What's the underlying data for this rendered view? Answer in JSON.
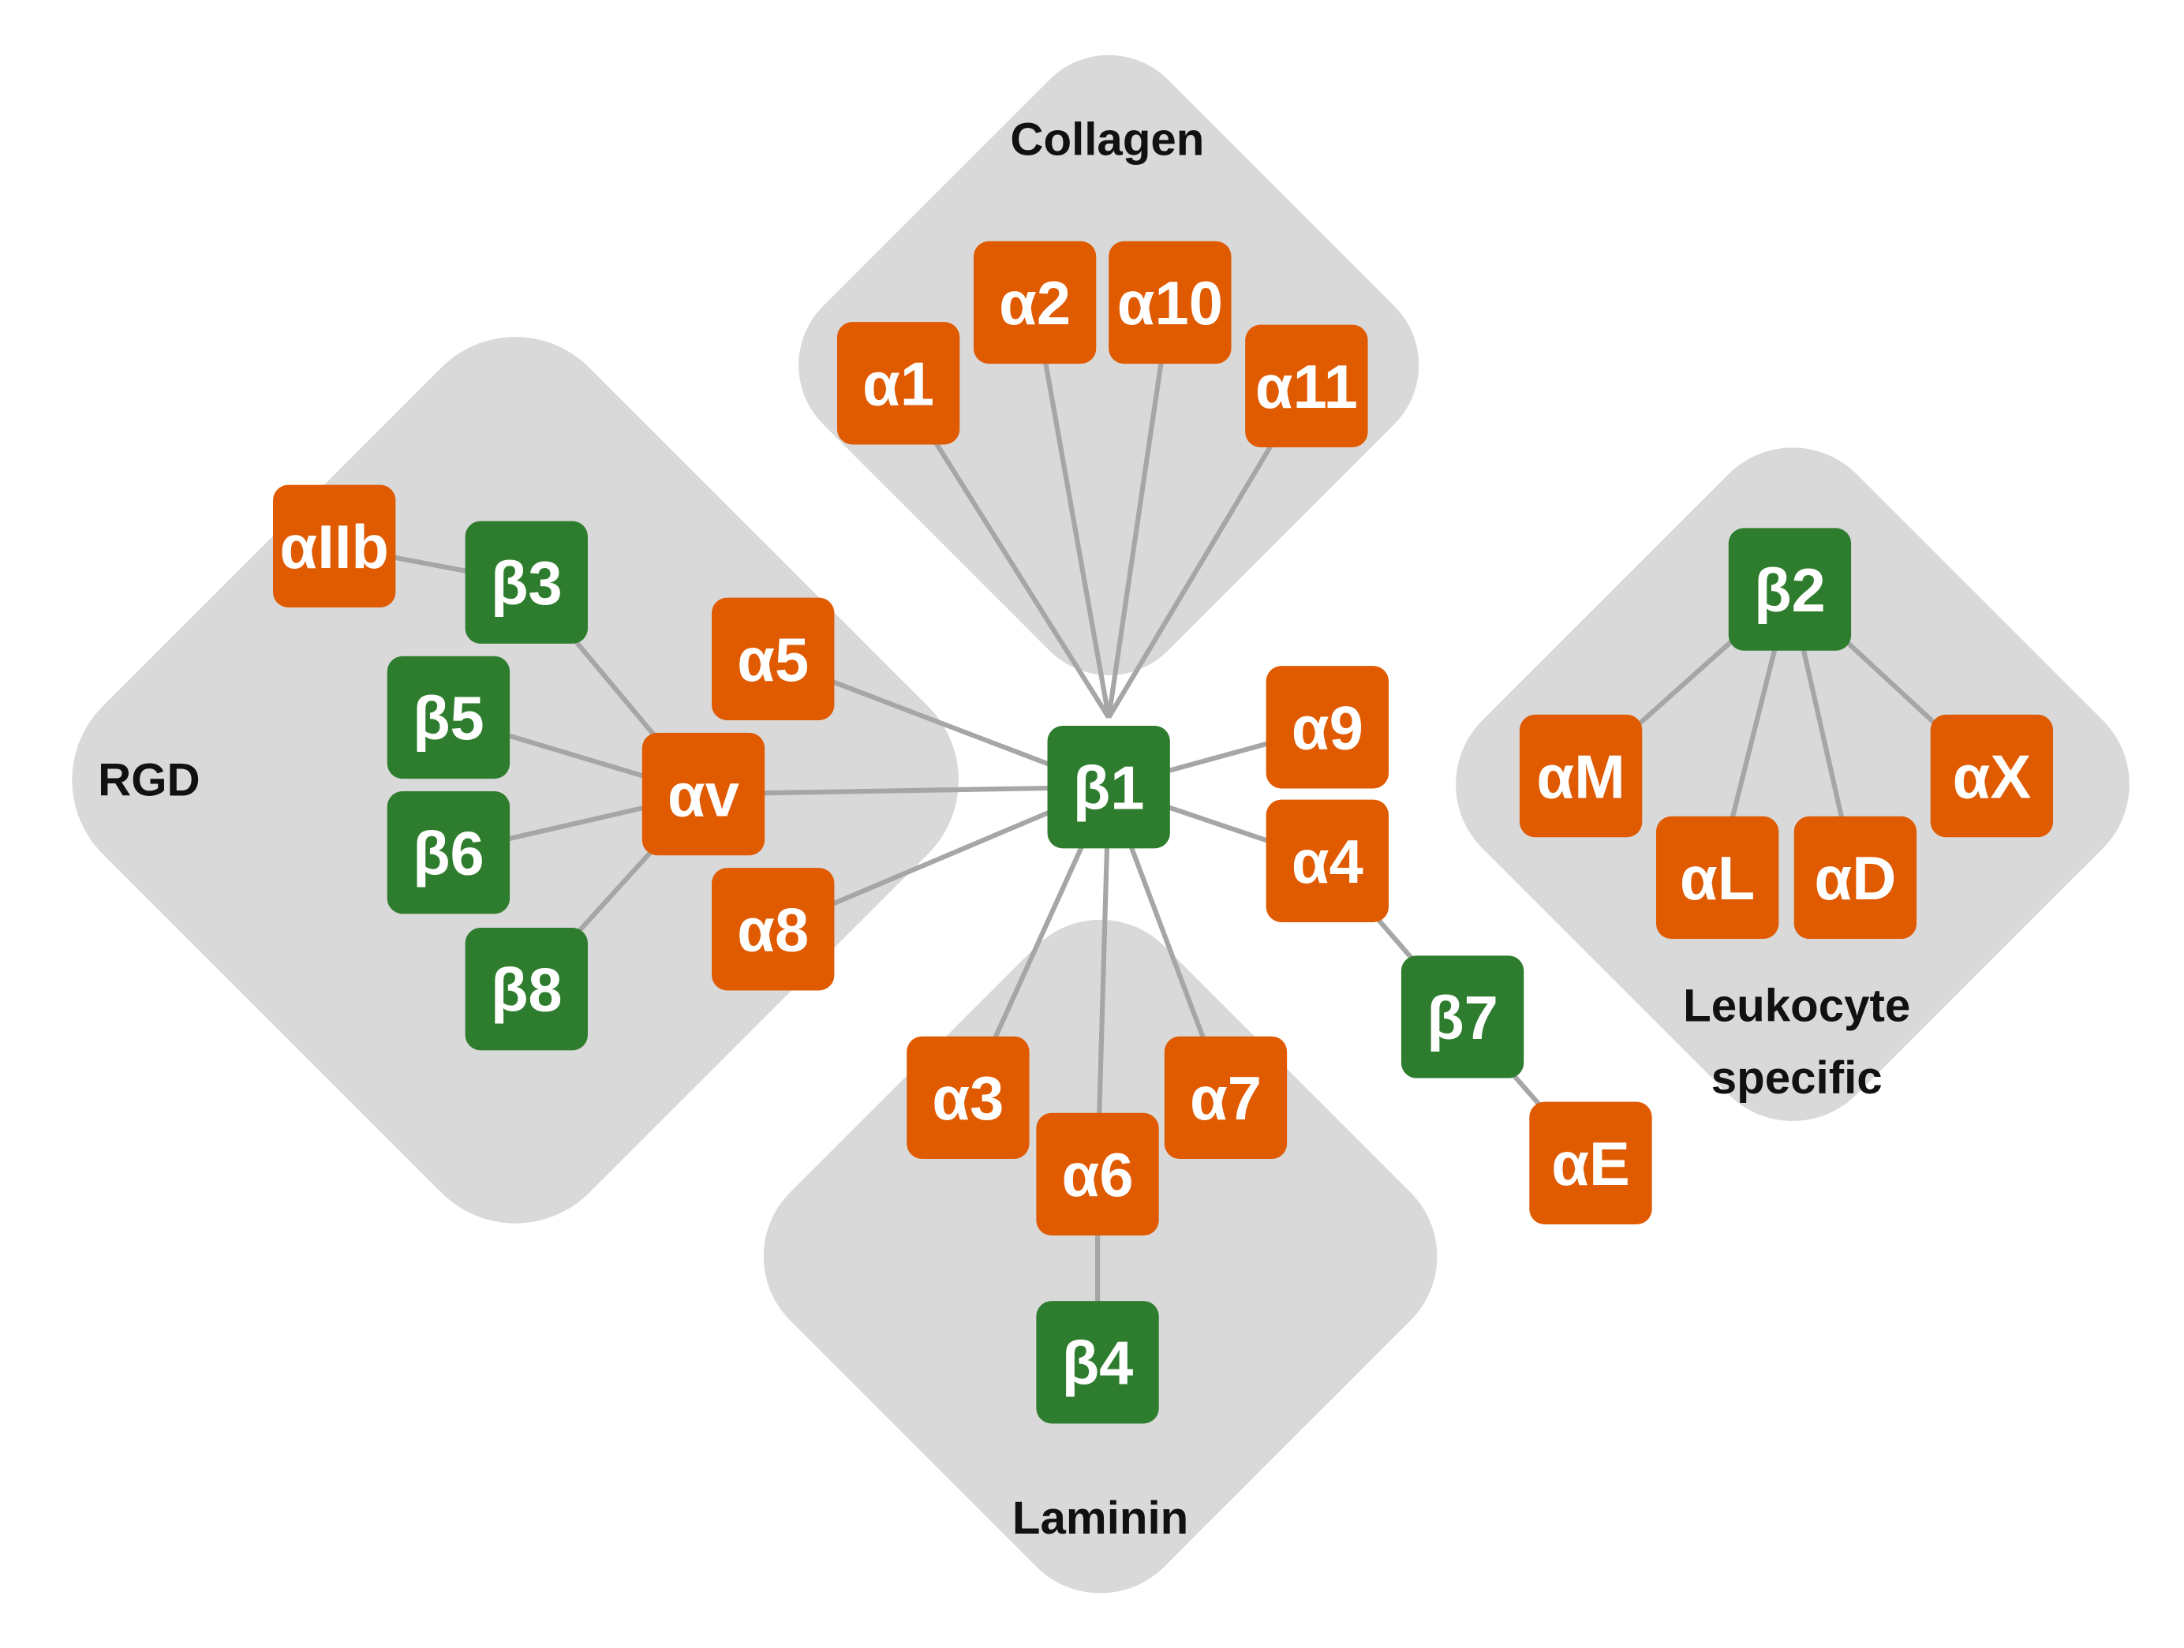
{
  "groups": [
    [
      "Collagen"
    ],
    [
      "RGD"
    ],
    [
      "Laminin"
    ],
    [
      "Leukocyte",
      "specific"
    ]
  ],
  "nodes": [
    "α1",
    "α2",
    "α10",
    "α11",
    "αIIb",
    "β3",
    "α5",
    "β5",
    "αv",
    "β6",
    "α8",
    "β8",
    "β1",
    "α9",
    "α4",
    "β7",
    "αE",
    "α3",
    "α7",
    "α6",
    "β4",
    "β2",
    "αM",
    "αL",
    "αD",
    "αX"
  ]
}
